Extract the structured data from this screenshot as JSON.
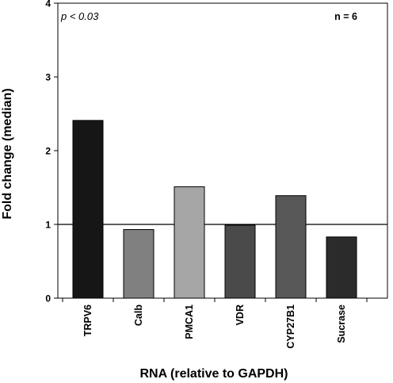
{
  "chart_data": {
    "type": "bar",
    "categories": [
      "TRPV6",
      "Calb",
      "PMCA1",
      "VDR",
      "CYP27B1",
      "Sucrase"
    ],
    "values": [
      2.41,
      0.93,
      1.51,
      0.99,
      1.39,
      0.83
    ],
    "bar_colors": [
      "#161616",
      "#808080",
      "#a6a6a6",
      "#4a4a4a",
      "#575757",
      "#2b2b2b"
    ],
    "xlabel": "RNA (relative to GAPDH)",
    "ylabel": "Fold change (median)",
    "ylim": [
      0,
      4
    ],
    "yticks": [
      "0",
      "1",
      "2",
      "3",
      "4"
    ],
    "reference_line": 1,
    "grid": false,
    "annotations": {
      "p_value": "p < 0.03",
      "n": "n = 6"
    }
  }
}
